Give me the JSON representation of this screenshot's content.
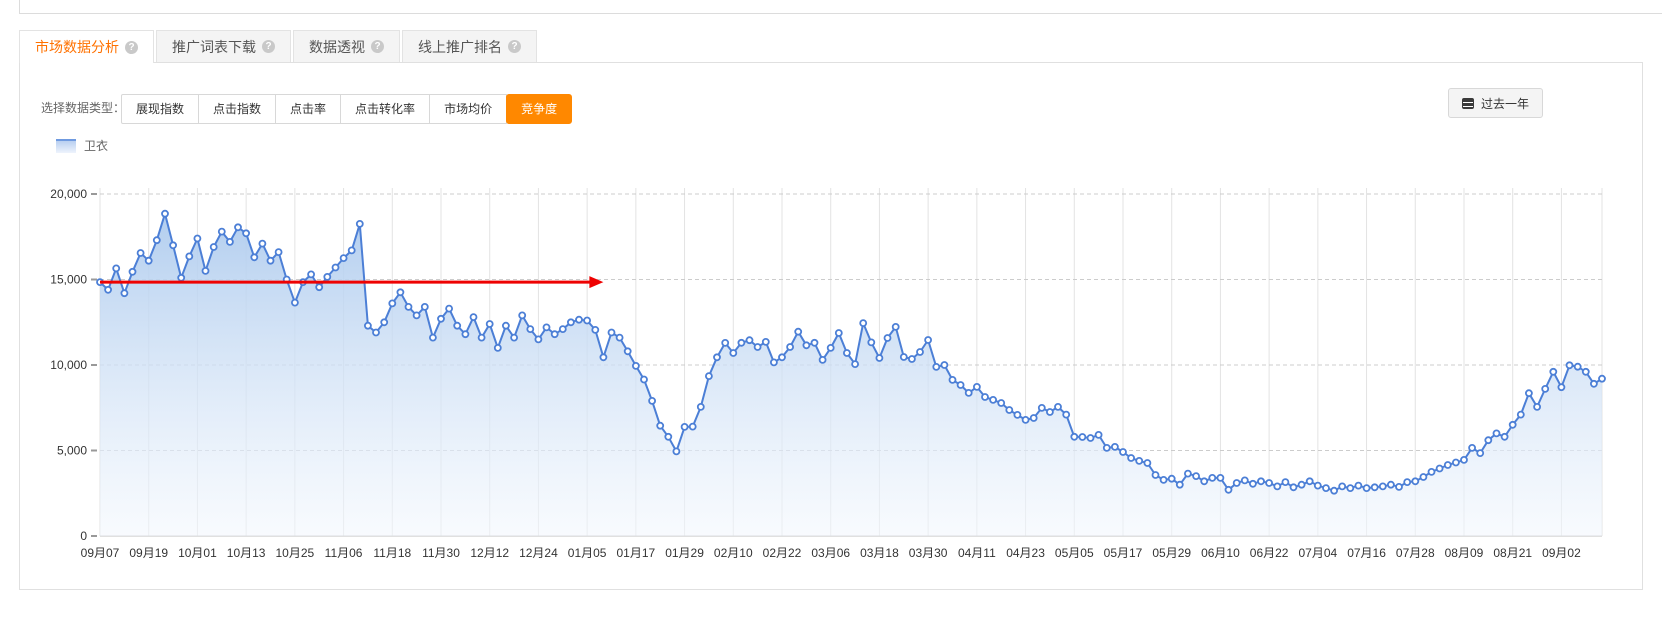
{
  "tabs": {
    "items": [
      {
        "label": "市场数据分析",
        "active": true
      },
      {
        "label": "推广词表下载",
        "active": false
      },
      {
        "label": "数据透视",
        "active": false
      },
      {
        "label": "线上推广排名",
        "active": false
      }
    ],
    "help_icon_glyph": "?"
  },
  "toolbar": {
    "selector_label": "选择数据类型：",
    "data_type_buttons": [
      {
        "label": "展现指数",
        "active": false
      },
      {
        "label": "点击指数",
        "active": false
      },
      {
        "label": "点击率",
        "active": false
      },
      {
        "label": "点击转化率",
        "active": false
      },
      {
        "label": "市场均价",
        "active": false
      },
      {
        "label": "竞争度",
        "active": true
      }
    ],
    "date_range_button": "过去一年",
    "calendar_icon": "calendar-icon"
  },
  "legend": {
    "series_label": "卫衣"
  },
  "colors": {
    "accent_orange": "#ff8800",
    "tab_active_text": "#ff7100",
    "line_blue": "#4c7fd6",
    "area_top": "#aecbee",
    "area_bottom": "#f2f7fd",
    "grid_vertical": "#e3e3e3",
    "grid_horizontal": "#cccccc",
    "annotation_red": "#ee0202"
  },
  "chart_data": {
    "type": "line",
    "series_name": "卫衣",
    "points_interval_days": 2,
    "points_per_tick": 6,
    "x_tick_labels": [
      "09月07",
      "09月19",
      "10月01",
      "10月13",
      "10月25",
      "11月06",
      "11月18",
      "11月30",
      "12月12",
      "12月24",
      "01月05",
      "01月17",
      "01月29",
      "02月10",
      "02月22",
      "03月06",
      "03月18",
      "03月30",
      "04月11",
      "04月23",
      "05月05",
      "05月17",
      "05月29",
      "06月10",
      "06月22",
      "07月04",
      "07月16",
      "07月28",
      "08月09",
      "08月21",
      "09月02"
    ],
    "ylim": [
      0,
      20000
    ],
    "y_ticks": [
      0,
      5000,
      10000,
      15000,
      20000
    ],
    "y_tick_labels": [
      "0",
      "5,000",
      "10,000",
      "15,000",
      "20,000"
    ],
    "grid": {
      "horizontal": "dashed",
      "vertical": "solid"
    },
    "annotation": {
      "type": "arrow",
      "value": 14850,
      "from_point_index": 0,
      "to_point_index": 62
    },
    "values": [
      14850,
      14400,
      15650,
      14200,
      15450,
      16550,
      16100,
      17300,
      18850,
      17000,
      15100,
      16350,
      17400,
      15500,
      16900,
      17800,
      17200,
      18050,
      17700,
      16300,
      17100,
      16100,
      16600,
      15000,
      13650,
      14850,
      15300,
      14550,
      15150,
      15700,
      16250,
      16700,
      18250,
      12300,
      11900,
      12500,
      13600,
      14250,
      13400,
      12900,
      13400,
      11600,
      12700,
      13300,
      12300,
      11800,
      12800,
      11600,
      12400,
      11000,
      12300,
      11600,
      12900,
      12100,
      11500,
      12200,
      11800,
      12100,
      12500,
      12650,
      12600,
      12050,
      10450,
      11900,
      11600,
      10800,
      9950,
      9150,
      7900,
      6450,
      5800,
      4950,
      6380,
      6400,
      7550,
      9350,
      10450,
      11290,
      10700,
      11300,
      11450,
      11050,
      11350,
      10150,
      10450,
      11050,
      11950,
      11150,
      11300,
      10300,
      11000,
      11870,
      10700,
      10050,
      12450,
      11320,
      10410,
      11580,
      12230,
      10470,
      10350,
      10760,
      11460,
      9890,
      10000,
      9130,
      8830,
      8370,
      8720,
      8130,
      7960,
      7780,
      7370,
      7080,
      6790,
      6900,
      7490,
      7250,
      7550,
      7100,
      5800,
      5790,
      5730,
      5910,
      5150,
      5210,
      4910,
      4560,
      4390,
      4270,
      3570,
      3280,
      3350,
      3000,
      3650,
      3500,
      3200,
      3400,
      3400,
      2700,
      3100,
      3250,
      3050,
      3200,
      3100,
      2900,
      3150,
      2850,
      3000,
      3200,
      2950,
      2800,
      2650,
      2900,
      2800,
      2950,
      2800,
      2850,
      2900,
      3000,
      2870,
      3150,
      3200,
      3450,
      3750,
      3950,
      4150,
      4300,
      4450,
      5150,
      4850,
      5600,
      6000,
      5800,
      6500,
      7100,
      8350,
      7550,
      8600,
      9600,
      8700,
      9980,
      9900,
      9600,
      8900,
      9200
    ]
  }
}
